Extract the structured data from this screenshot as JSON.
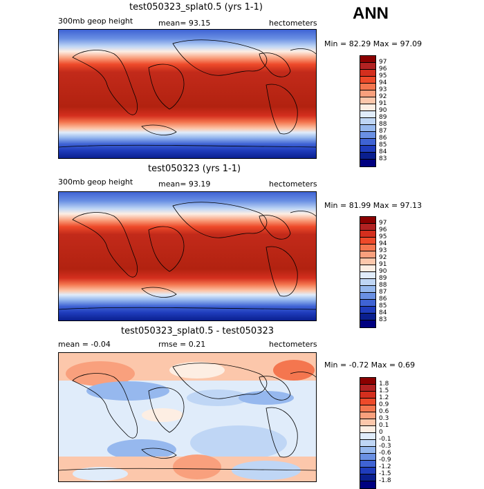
{
  "season": "ANN",
  "panels": [
    {
      "title": "test050323_splat0.5 (yrs 1-1)",
      "left_label": "300mb geop height",
      "center_label": "mean=  93.15",
      "right_label": "hectometers",
      "minmax": "Min =  82.29 Max =  97.09",
      "type": "full"
    },
    {
      "title": "test050323 (yrs 1-1)",
      "left_label": "300mb geop height",
      "center_label": "mean=  93.19",
      "right_label": "hectometers",
      "minmax": "Min =  81.99 Max =  97.13",
      "type": "full"
    },
    {
      "title": "test050323_splat0.5 - test050323",
      "left_label": "mean =  -0.04",
      "center_label": "rmse =   0.21",
      "right_label": "hectometers",
      "minmax": "Min =  -0.72 Max =   0.69",
      "type": "diff"
    }
  ],
  "colorbar_full": {
    "labels": [
      "97",
      "96",
      "95",
      "94",
      "93",
      "92",
      "91",
      "90",
      "89",
      "88",
      "87",
      "86",
      "85",
      "84",
      "83"
    ],
    "colors": [
      "#8b0000",
      "#b22222",
      "#d42f1e",
      "#ee4a2a",
      "#f4764f",
      "#f9a07d",
      "#fcc7ab",
      "#fdeee3",
      "#e0ecfa",
      "#bfd6f5",
      "#96b8ee",
      "#6a90e3",
      "#3f63d4",
      "#1f3cbc",
      "#0a1f8f",
      "#000080"
    ]
  },
  "colorbar_diff": {
    "labels": [
      "1.8",
      "1.5",
      "1.2",
      "0.9",
      "0.6",
      "0.3",
      "0.1",
      "0",
      "-0.1",
      "-0.3",
      "-0.6",
      "-0.9",
      "-1.2",
      "-1.5",
      "-1.8"
    ],
    "colors": [
      "#8b0000",
      "#b22222",
      "#d42f1e",
      "#ee4a2a",
      "#f4764f",
      "#f9a07d",
      "#fcc7ab",
      "#fdeee3",
      "#e0ecfa",
      "#bfd6f5",
      "#96b8ee",
      "#6a90e3",
      "#3f63d4",
      "#1f3cbc",
      "#0a1f8f",
      "#000080"
    ]
  }
}
